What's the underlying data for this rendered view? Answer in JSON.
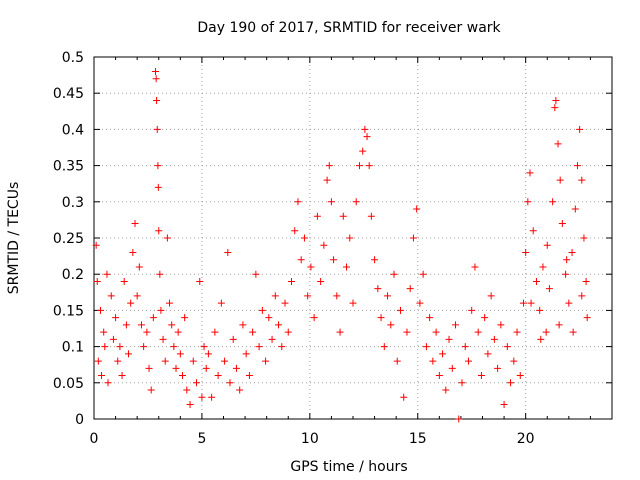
{
  "chart_data": {
    "type": "scatter",
    "title": "Day 190 of 2017, SRMTID for receiver wark",
    "xlabel": "GPS time / hours",
    "ylabel": "SRMTID / TECUs",
    "xlim": [
      0,
      24
    ],
    "ylim": [
      0,
      0.5
    ],
    "xticks": [
      0,
      5,
      10,
      15,
      20
    ],
    "xtick_labels": [
      "0",
      "5",
      "10",
      "15",
      "20"
    ],
    "yticks": [
      0,
      0.05,
      0.1,
      0.15,
      0.2,
      0.25,
      0.3,
      0.35,
      0.4,
      0.45,
      0.5
    ],
    "ytick_labels": [
      "0",
      "0.05",
      "0.1",
      "0.15",
      "0.2",
      "0.25",
      "0.3",
      "0.35",
      "0.4",
      "0.45",
      "0.5"
    ],
    "grid": true,
    "marker": "+",
    "color": "#ff0000",
    "grid_color": "#a0a0a0",
    "series": [
      {
        "name": "SRMTID",
        "points": [
          [
            0.1,
            0.24
          ],
          [
            0.15,
            0.19
          ],
          [
            0.2,
            0.08
          ],
          [
            0.3,
            0.15
          ],
          [
            0.35,
            0.06
          ],
          [
            0.45,
            0.12
          ],
          [
            0.5,
            0.1
          ],
          [
            0.6,
            0.2
          ],
          [
            0.65,
            0.05
          ],
          [
            0.8,
            0.17
          ],
          [
            0.9,
            0.11
          ],
          [
            1.0,
            0.14
          ],
          [
            1.1,
            0.08
          ],
          [
            1.2,
            0.1
          ],
          [
            1.3,
            0.06
          ],
          [
            1.4,
            0.19
          ],
          [
            1.5,
            0.13
          ],
          [
            1.6,
            0.09
          ],
          [
            1.7,
            0.16
          ],
          [
            1.8,
            0.23
          ],
          [
            1.9,
            0.27
          ],
          [
            2.0,
            0.17
          ],
          [
            2.1,
            0.21
          ],
          [
            2.2,
            0.13
          ],
          [
            2.3,
            0.1
          ],
          [
            2.45,
            0.12
          ],
          [
            2.55,
            0.07
          ],
          [
            2.65,
            0.04
          ],
          [
            2.75,
            0.14
          ],
          [
            2.85,
            0.48
          ],
          [
            2.88,
            0.47
          ],
          [
            2.9,
            0.44
          ],
          [
            2.93,
            0.4
          ],
          [
            2.96,
            0.35
          ],
          [
            2.98,
            0.32
          ],
          [
            3.0,
            0.26
          ],
          [
            3.05,
            0.2
          ],
          [
            3.1,
            0.15
          ],
          [
            3.2,
            0.11
          ],
          [
            3.3,
            0.08
          ],
          [
            3.4,
            0.25
          ],
          [
            3.5,
            0.16
          ],
          [
            3.6,
            0.13
          ],
          [
            3.7,
            0.1
          ],
          [
            3.8,
            0.07
          ],
          [
            3.9,
            0.12
          ],
          [
            4.0,
            0.09
          ],
          [
            4.1,
            0.06
          ],
          [
            4.2,
            0.14
          ],
          [
            4.3,
            0.04
          ],
          [
            4.45,
            0.02
          ],
          [
            4.6,
            0.08
          ],
          [
            4.75,
            0.05
          ],
          [
            4.9,
            0.19
          ],
          [
            5.0,
            0.03
          ],
          [
            5.1,
            0.1
          ],
          [
            5.2,
            0.07
          ],
          [
            5.3,
            0.09
          ],
          [
            5.45,
            0.03
          ],
          [
            5.6,
            0.12
          ],
          [
            5.75,
            0.06
          ],
          [
            5.9,
            0.16
          ],
          [
            6.05,
            0.08
          ],
          [
            6.2,
            0.23
          ],
          [
            6.3,
            0.05
          ],
          [
            6.45,
            0.11
          ],
          [
            6.6,
            0.07
          ],
          [
            6.75,
            0.04
          ],
          [
            6.9,
            0.13
          ],
          [
            7.05,
            0.09
          ],
          [
            7.2,
            0.06
          ],
          [
            7.35,
            0.12
          ],
          [
            7.5,
            0.2
          ],
          [
            7.65,
            0.1
          ],
          [
            7.8,
            0.15
          ],
          [
            7.95,
            0.08
          ],
          [
            8.1,
            0.14
          ],
          [
            8.25,
            0.11
          ],
          [
            8.4,
            0.17
          ],
          [
            8.55,
            0.13
          ],
          [
            8.7,
            0.1
          ],
          [
            8.85,
            0.16
          ],
          [
            9.0,
            0.12
          ],
          [
            9.15,
            0.19
          ],
          [
            9.3,
            0.26
          ],
          [
            9.45,
            0.3
          ],
          [
            9.6,
            0.22
          ],
          [
            9.75,
            0.25
          ],
          [
            9.9,
            0.17
          ],
          [
            10.05,
            0.21
          ],
          [
            10.2,
            0.14
          ],
          [
            10.35,
            0.28
          ],
          [
            10.5,
            0.19
          ],
          [
            10.65,
            0.24
          ],
          [
            10.8,
            0.33
          ],
          [
            10.9,
            0.35
          ],
          [
            11.0,
            0.3
          ],
          [
            11.1,
            0.22
          ],
          [
            11.25,
            0.17
          ],
          [
            11.4,
            0.12
          ],
          [
            11.55,
            0.28
          ],
          [
            11.7,
            0.21
          ],
          [
            11.85,
            0.25
          ],
          [
            12.0,
            0.16
          ],
          [
            12.15,
            0.3
          ],
          [
            12.3,
            0.35
          ],
          [
            12.45,
            0.37
          ],
          [
            12.55,
            0.4
          ],
          [
            12.65,
            0.39
          ],
          [
            12.75,
            0.35
          ],
          [
            12.85,
            0.28
          ],
          [
            13.0,
            0.22
          ],
          [
            13.15,
            0.18
          ],
          [
            13.3,
            0.14
          ],
          [
            13.45,
            0.1
          ],
          [
            13.6,
            0.17
          ],
          [
            13.75,
            0.13
          ],
          [
            13.9,
            0.2
          ],
          [
            14.05,
            0.08
          ],
          [
            14.2,
            0.15
          ],
          [
            14.35,
            0.03
          ],
          [
            14.5,
            0.12
          ],
          [
            14.65,
            0.18
          ],
          [
            14.8,
            0.25
          ],
          [
            14.95,
            0.29
          ],
          [
            15.1,
            0.16
          ],
          [
            15.25,
            0.2
          ],
          [
            15.4,
            0.1
          ],
          [
            15.55,
            0.14
          ],
          [
            15.7,
            0.08
          ],
          [
            15.85,
            0.12
          ],
          [
            16.0,
            0.06
          ],
          [
            16.15,
            0.09
          ],
          [
            16.3,
            0.04
          ],
          [
            16.45,
            0.11
          ],
          [
            16.6,
            0.07
          ],
          [
            16.75,
            0.13
          ],
          [
            16.9,
            0.0
          ],
          [
            17.05,
            0.05
          ],
          [
            17.2,
            0.1
          ],
          [
            17.35,
            0.08
          ],
          [
            17.5,
            0.15
          ],
          [
            17.65,
            0.21
          ],
          [
            17.8,
            0.12
          ],
          [
            17.95,
            0.06
          ],
          [
            18.1,
            0.14
          ],
          [
            18.25,
            0.09
          ],
          [
            18.4,
            0.17
          ],
          [
            18.55,
            0.11
          ],
          [
            18.7,
            0.07
          ],
          [
            18.85,
            0.13
          ],
          [
            19.0,
            0.02
          ],
          [
            19.15,
            0.1
          ],
          [
            19.3,
            0.05
          ],
          [
            19.45,
            0.08
          ],
          [
            19.6,
            0.12
          ],
          [
            19.75,
            0.06
          ],
          [
            19.9,
            0.16
          ],
          [
            20.0,
            0.23
          ],
          [
            20.1,
            0.3
          ],
          [
            20.2,
            0.34
          ],
          [
            20.35,
            0.26
          ],
          [
            20.5,
            0.19
          ],
          [
            20.65,
            0.15
          ],
          [
            20.8,
            0.21
          ],
          [
            20.95,
            0.12
          ],
          [
            21.1,
            0.18
          ],
          [
            21.25,
            0.3
          ],
          [
            21.35,
            0.43
          ],
          [
            21.4,
            0.44
          ],
          [
            21.5,
            0.38
          ],
          [
            21.6,
            0.33
          ],
          [
            21.7,
            0.27
          ],
          [
            21.85,
            0.2
          ],
          [
            22.0,
            0.16
          ],
          [
            22.15,
            0.23
          ],
          [
            22.3,
            0.29
          ],
          [
            22.4,
            0.35
          ],
          [
            22.5,
            0.4
          ],
          [
            22.6,
            0.33
          ],
          [
            22.7,
            0.25
          ],
          [
            22.8,
            0.19
          ],
          [
            22.85,
            0.14
          ],
          [
            22.6,
            0.17
          ],
          [
            22.2,
            0.12
          ],
          [
            21.9,
            0.22
          ],
          [
            21.55,
            0.13
          ],
          [
            21.0,
            0.24
          ],
          [
            20.7,
            0.11
          ],
          [
            20.25,
            0.16
          ]
        ]
      }
    ]
  }
}
